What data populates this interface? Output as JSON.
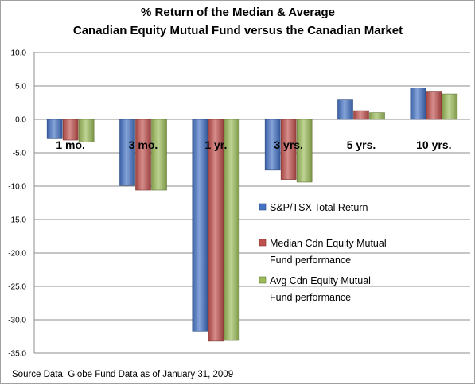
{
  "chart_data": {
    "type": "bar",
    "title": [
      "% Return of the Median & Average",
      "Canadian Equity Mutual Fund versus the Canadian Market"
    ],
    "categories": [
      "1 mo.",
      "3 mo.",
      "1 yr.",
      "3 yrs.",
      "5 yrs.",
      "10 yrs."
    ],
    "series": [
      {
        "name": "S&P/TSX Total Return",
        "color": "#4472C4",
        "values": [
          -2.9,
          -9.9,
          -31.7,
          -7.6,
          2.9,
          4.7
        ]
      },
      {
        "name": "Median Cdn Equity Mutual Fund performance",
        "color": "#C0504D",
        "values": [
          -3.1,
          -10.6,
          -33.2,
          -9.0,
          1.3,
          4.1
        ]
      },
      {
        "name": "Avg Cdn Equity Mutual Fund performance",
        "color": "#9BBB59",
        "values": [
          -3.4,
          -10.6,
          -33.1,
          -9.4,
          1.0,
          3.8
        ]
      }
    ],
    "legend_lines": [
      [
        "S&P/TSX Total Return"
      ],
      [
        "Median Cdn Equity Mutual",
        "Fund performance"
      ],
      [
        "Avg Cdn Equity Mutual",
        "Fund performance"
      ]
    ],
    "yticks": [
      "10.0",
      "5.0",
      "0.0",
      "-5.0",
      "-10.0",
      "-15.0",
      "-20.0",
      "-25.0",
      "-30.0",
      "-35.0"
    ],
    "ylim": [
      -35,
      10
    ],
    "grid": true,
    "legend_position": "right",
    "source_note": "Source Data:  Globe Fund     Data as of January 31, 2009"
  }
}
